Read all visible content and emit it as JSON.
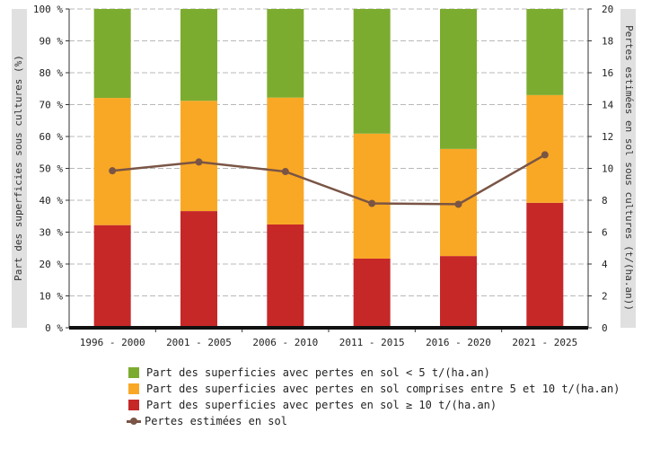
{
  "chart_data": {
    "type": "bar",
    "stacked": true,
    "categories": [
      "1996 - 2000",
      "2001 - 2005",
      "2006 - 2010",
      "2011 - 2015",
      "2016 - 2020",
      "2021 - 2025"
    ],
    "series": [
      {
        "name": "Part des superficies avec pertes en sol ≥ 10 t/(ha.an)",
        "color": "#c62828",
        "values": [
          32.2,
          36.6,
          32.4,
          21.7,
          22.5,
          39.2
        ]
      },
      {
        "name": "Part des superficies avec pertes en sol comprises entre 5 et 10 t/(ha.an)",
        "color": "#f9a825",
        "values": [
          39.9,
          34.6,
          39.8,
          39.2,
          33.6,
          33.8
        ]
      },
      {
        "name": "Part des superficies avec pertes en sol < 5 t/(ha.an)",
        "color": "#7cac2f",
        "values": [
          27.9,
          28.8,
          27.8,
          39.1,
          43.9,
          27.0
        ]
      }
    ],
    "line_series": {
      "name": "Pertes estimées en sol",
      "color": "#7a5545",
      "axis": "right",
      "values": [
        9.85,
        10.4,
        9.8,
        7.8,
        7.75,
        10.85
      ]
    },
    "y_left": {
      "label": "Part des superficies sous cultures (%)",
      "ylim": [
        0,
        100
      ],
      "ticks": [
        "0 %",
        "10 %",
        "20 %",
        "30 %",
        "40 %",
        "50 %",
        "60 %",
        "70 %",
        "80 %",
        "90 %",
        "100 %"
      ]
    },
    "y_right": {
      "label": "Pertes estimées en sol sous cultures (t/(ha.an))",
      "ylim": [
        0,
        20
      ],
      "ticks": [
        "0",
        "2",
        "4",
        "6",
        "8",
        "10",
        "12",
        "14",
        "16",
        "18",
        "20"
      ]
    },
    "grid": true,
    "legend_position": "bottom"
  }
}
